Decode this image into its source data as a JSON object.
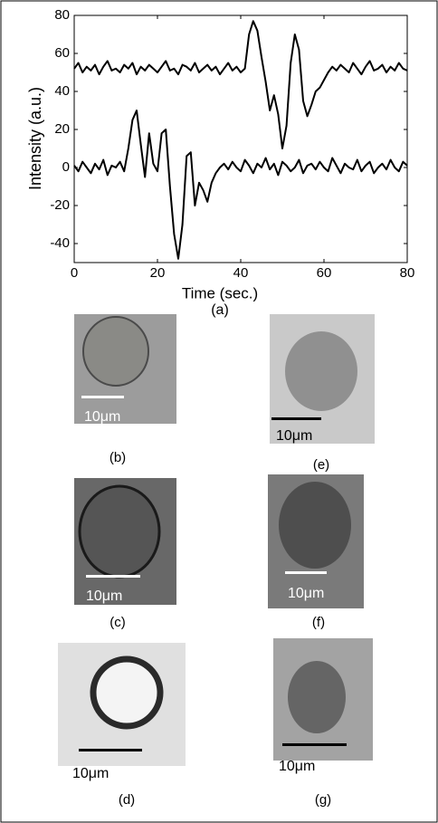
{
  "chart_data": {
    "type": "line",
    "xlabel": "Time (sec.)",
    "ylabel": "Intensity (a.u.)",
    "caption": "(a)",
    "x": [
      0,
      1,
      2,
      3,
      4,
      5,
      6,
      7,
      8,
      9,
      10,
      11,
      12,
      13,
      14,
      15,
      16,
      17,
      18,
      19,
      20,
      21,
      22,
      23,
      24,
      25,
      26,
      27,
      28,
      29,
      30,
      31,
      32,
      33,
      34,
      35,
      36,
      37,
      38,
      39,
      40,
      41,
      42,
      43,
      44,
      45,
      46,
      47,
      48,
      49,
      50,
      51,
      52,
      53,
      54,
      55,
      56,
      57,
      58,
      59,
      60,
      61,
      62,
      63,
      64,
      65,
      66,
      67,
      68,
      69,
      70,
      71,
      72,
      73,
      74,
      75,
      76,
      77,
      78,
      79,
      80
    ],
    "series": [
      {
        "color": "#000000",
        "values": [
          52,
          55,
          50,
          53,
          51,
          54,
          49,
          53,
          56,
          51,
          52,
          50,
          54,
          52,
          55,
          49,
          53,
          51,
          54,
          52,
          50,
          53,
          56,
          51,
          52,
          49,
          54,
          53,
          51,
          55,
          50,
          52,
          54,
          51,
          53,
          49,
          52,
          55,
          51,
          53,
          50,
          52,
          70,
          77,
          72,
          58,
          45,
          30,
          38,
          28,
          10,
          22,
          55,
          70,
          62,
          35,
          27,
          33,
          40,
          42,
          46,
          50,
          53,
          51,
          54,
          52,
          50,
          55,
          52,
          49,
          53,
          56,
          51,
          52,
          54,
          50,
          53,
          51,
          55,
          52,
          51
        ]
      },
      {
        "color": "#000000",
        "values": [
          1,
          -2,
          3,
          0,
          -3,
          2,
          -1,
          4,
          -4,
          1,
          0,
          3,
          -2,
          10,
          25,
          30,
          12,
          -5,
          18,
          2,
          -2,
          18,
          20,
          -10,
          -35,
          -48,
          -30,
          6,
          8,
          -20,
          -8,
          -12,
          -18,
          -8,
          -3,
          0,
          2,
          -1,
          3,
          0,
          -2,
          4,
          1,
          -3,
          2,
          0,
          5,
          -1,
          2,
          -4,
          3,
          1,
          -2,
          0,
          4,
          -3,
          1,
          2,
          -1,
          3,
          0,
          -2,
          5,
          1,
          -3,
          2,
          0,
          -1,
          4,
          -2,
          1,
          3,
          -3,
          0,
          2,
          -1,
          4,
          0,
          -2,
          3,
          1
        ]
      }
    ],
    "xlim": [
      0,
      80
    ],
    "xticks": [
      0,
      20,
      40,
      60,
      80
    ],
    "ylim": [
      -50,
      80
    ],
    "yticks": [
      -40,
      -20,
      0,
      20,
      40,
      60,
      80
    ]
  },
  "panels": [
    {
      "caption": "(b)",
      "scale_label": "10μm"
    },
    {
      "caption": "(e)",
      "scale_label": "10μm"
    },
    {
      "caption": "(c)",
      "scale_label": "10μm"
    },
    {
      "caption": "(f)",
      "scale_label": "10μm"
    },
    {
      "caption": "(d)",
      "scale_label": "10μm"
    },
    {
      "caption": "(g)",
      "scale_label": "10μm"
    }
  ]
}
